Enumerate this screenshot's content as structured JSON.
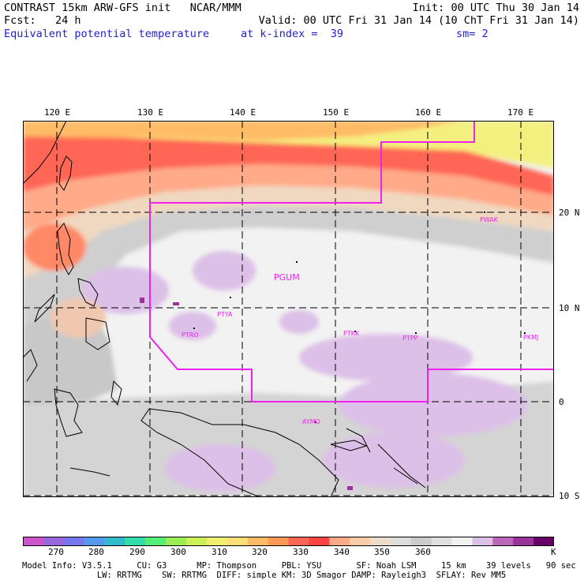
{
  "header": {
    "line1_left": "CONTRAST 15km ARW-GFS init   NCAR/MMM",
    "line1_right": "Init: 00 UTC Thu 30 Jan 14",
    "line2_left": "Fcst:   24 h",
    "line2_right": "Valid: 00 UTC Fri 31 Jan 14 (10 ChT Fri 31 Jan 14)",
    "field": "Equivalent potential temperature",
    "level": "at k-index =  39",
    "smooth": "sm= 2"
  },
  "axes": {
    "lon_labels": [
      "120 E",
      "130 E",
      "140 E",
      "150 E",
      "160 E",
      "170 E"
    ],
    "lat_labels": [
      "20 N",
      "10 N",
      "0",
      "10 S"
    ]
  },
  "stations": [
    {
      "id": "PGUM"
    },
    {
      "id": "PTYA"
    },
    {
      "id": "PTRO"
    },
    {
      "id": "PTKK"
    },
    {
      "id": "PTPP"
    },
    {
      "id": "PKMJ"
    },
    {
      "id": "PWAK"
    },
    {
      "id": "AYMO"
    }
  ],
  "colorbar": {
    "unit": "K",
    "labels": [
      "270",
      "280",
      "290",
      "300",
      "310",
      "320",
      "330",
      "340",
      "350",
      "360"
    ],
    "colors": [
      "#cc55cc",
      "#9966dd",
      "#7777ee",
      "#5599ee",
      "#33bbcc",
      "#33ddaa",
      "#55ee77",
      "#99ee55",
      "#ccf055",
      "#f0f070",
      "#ffdd77",
      "#ffbb66",
      "#ff9955",
      "#ff6655",
      "#ff4444",
      "#ffaa88",
      "#ffccaa",
      "#eeddcc",
      "#dddddd",
      "#cccccc",
      "#e0e0e0",
      "#f2f2f2",
      "#ddc0e8",
      "#bb66bb",
      "#993399",
      "#660066"
    ]
  },
  "footer": {
    "line1": "Model Info: V3.5.1     CU: G3      MP: Thompson     PBL: YSU       SF: Noah LSM     15 km    39 levels   90 sec",
    "line2": "               LW: RRTMG    SW: RRTMG  DIFF: simple KM: 3D Smagor DAMP: Rayleigh3  SFLAY: Rev MM5"
  }
}
